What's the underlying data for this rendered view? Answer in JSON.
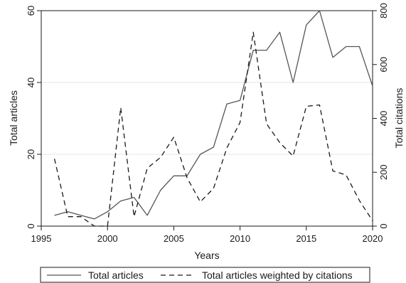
{
  "chart_data": {
    "type": "line",
    "xlabel": "Years",
    "ylabel": "Total articles",
    "y2label": "Total citations",
    "xlim": [
      1995,
      2020
    ],
    "ylim": [
      0,
      60
    ],
    "y2lim": [
      0,
      800
    ],
    "x_ticks": [
      1995,
      2000,
      2005,
      2010,
      2015,
      2020
    ],
    "y_ticks": [
      0,
      20,
      40,
      60
    ],
    "y2_ticks": [
      0,
      200,
      400,
      600,
      800
    ],
    "grid": true,
    "legend_position": "bottom",
    "x": [
      1996,
      1997,
      1998,
      1999,
      2000,
      2001,
      2002,
      2003,
      2004,
      2005,
      2006,
      2007,
      2008,
      2009,
      2010,
      2011,
      2012,
      2013,
      2014,
      2015,
      2016,
      2017,
      2018,
      2019,
      2020
    ],
    "series": [
      {
        "name": "Total articles",
        "axis": "left",
        "style": "solid",
        "color": "#555555",
        "values": [
          3,
          4,
          3,
          2,
          4,
          7,
          8,
          3,
          10,
          14,
          14,
          20,
          22,
          34,
          35,
          49,
          49,
          54,
          40,
          56,
          60,
          47,
          50,
          50,
          39
        ]
      },
      {
        "name": "Total articles weighted by citations",
        "axis": "right",
        "style": "dashed",
        "color": "#1a1a1a",
        "values": [
          250,
          35,
          35,
          0,
          0,
          440,
          35,
          215,
          255,
          330,
          180,
          90,
          140,
          290,
          385,
          720,
          380,
          310,
          260,
          445,
          450,
          205,
          190,
          95,
          20
        ]
      }
    ]
  }
}
